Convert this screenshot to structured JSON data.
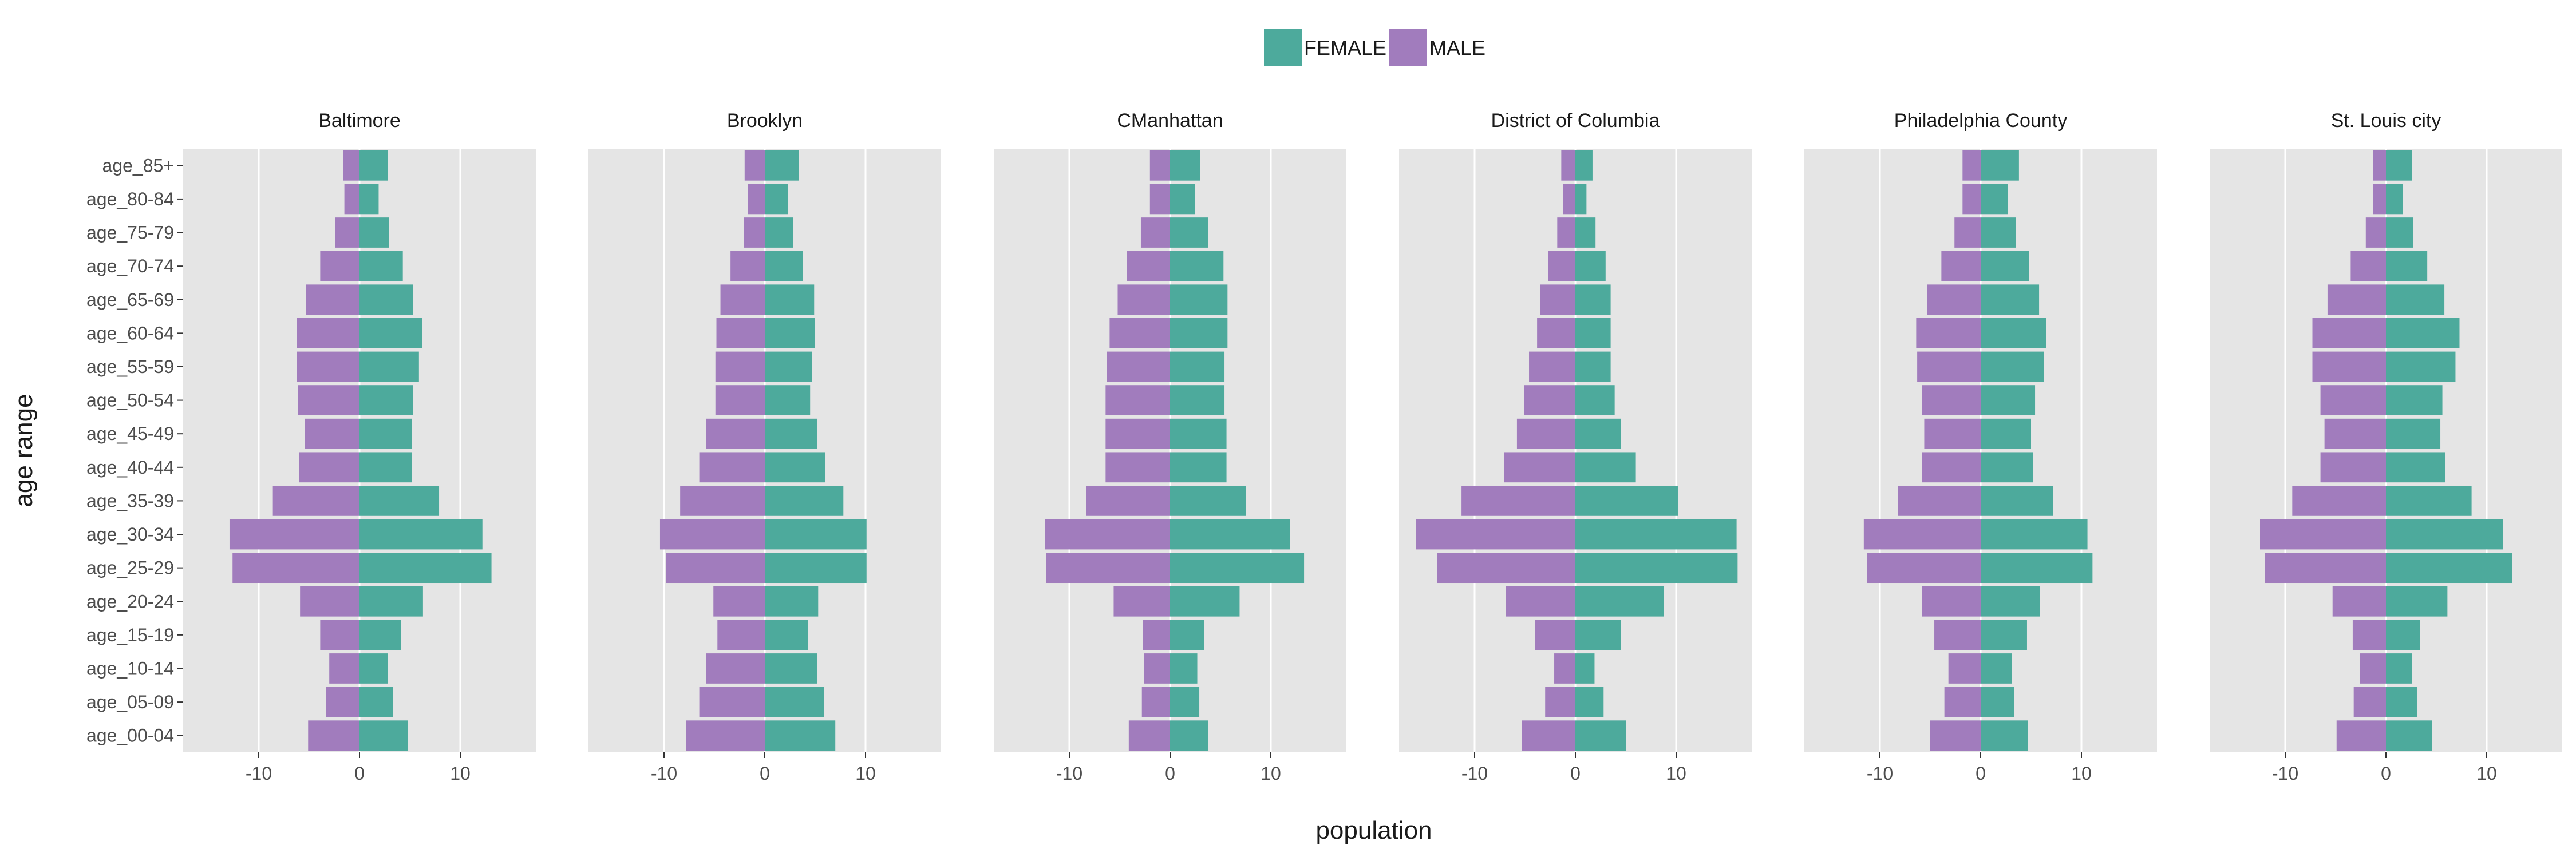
{
  "chart_data": {
    "type": "bar",
    "orientation": "horizontal",
    "layout": "faceted population pyramid",
    "xlabel": "population",
    "ylabel": "age range",
    "xlim": [
      -17.5,
      17.5
    ],
    "x_ticks": [
      -10,
      0,
      10
    ],
    "x_tick_labels": [
      "-10",
      "0",
      "10"
    ],
    "grid": true,
    "legend": {
      "position": "top",
      "entries": [
        "FEMALE",
        "MALE"
      ]
    },
    "colors": {
      "FEMALE": "#4daa9c",
      "MALE": "#a17cbd",
      "panel_bg": "#e5e5e5",
      "grid": "#ffffff"
    },
    "categories": [
      "age_00-04",
      "age_05-09",
      "age_10-14",
      "age_15-19",
      "age_20-24",
      "age_25-29",
      "age_30-34",
      "age_35-39",
      "age_40-44",
      "age_45-49",
      "age_50-54",
      "age_55-59",
      "age_60-64",
      "age_65-69",
      "age_70-74",
      "age_75-79",
      "age_80-84",
      "age_85+"
    ],
    "facets": [
      {
        "name": "Baltimore",
        "series": [
          {
            "name": "FEMALE",
            "values": [
              4.8,
              3.3,
              2.8,
              4.1,
              6.3,
              13.1,
              12.2,
              7.9,
              5.2,
              5.2,
              5.3,
              5.9,
              6.2,
              5.3,
              4.3,
              2.9,
              1.9,
              2.8
            ]
          },
          {
            "name": "MALE",
            "values": [
              -5.1,
              -3.3,
              -3.0,
              -3.9,
              -5.9,
              -12.6,
              -12.9,
              -8.6,
              -6.0,
              -5.4,
              -6.1,
              -6.2,
              -6.2,
              -5.3,
              -3.9,
              -2.4,
              -1.5,
              -1.6
            ]
          }
        ]
      },
      {
        "name": "Brooklyn",
        "series": [
          {
            "name": "FEMALE",
            "values": [
              7.0,
              5.9,
              5.2,
              4.3,
              5.3,
              10.1,
              10.1,
              7.8,
              6.0,
              5.2,
              4.5,
              4.7,
              5.0,
              4.9,
              3.8,
              2.8,
              2.3,
              3.4
            ]
          },
          {
            "name": "MALE",
            "values": [
              -7.8,
              -6.5,
              -5.8,
              -4.7,
              -5.1,
              -9.8,
              -10.4,
              -8.4,
              -6.5,
              -5.8,
              -4.9,
              -4.9,
              -4.8,
              -4.4,
              -3.4,
              -2.1,
              -1.7,
              -2.0
            ]
          }
        ]
      },
      {
        "name": "CManhattan",
        "series": [
          {
            "name": "FEMALE",
            "values": [
              3.8,
              2.9,
              2.7,
              3.4,
              6.9,
              13.3,
              11.9,
              7.5,
              5.6,
              5.6,
              5.4,
              5.4,
              5.7,
              5.7,
              5.3,
              3.8,
              2.5,
              3.0
            ]
          },
          {
            "name": "MALE",
            "values": [
              -4.1,
              -2.8,
              -2.6,
              -2.7,
              -5.6,
              -12.3,
              -12.4,
              -8.3,
              -6.4,
              -6.4,
              -6.4,
              -6.3,
              -6.0,
              -5.2,
              -4.3,
              -2.9,
              -2.0,
              -2.0
            ]
          }
        ]
      },
      {
        "name": "District of Columbia",
        "series": [
          {
            "name": "FEMALE",
            "values": [
              5.0,
              2.8,
              1.9,
              4.5,
              8.8,
              16.1,
              16.0,
              10.2,
              6.0,
              4.5,
              3.9,
              3.5,
              3.5,
              3.5,
              3.0,
              2.0,
              1.1,
              1.7
            ]
          },
          {
            "name": "MALE",
            "values": [
              -5.3,
              -3.0,
              -2.1,
              -4.0,
              -6.9,
              -13.7,
              -15.8,
              -11.3,
              -7.1,
              -5.8,
              -5.1,
              -4.6,
              -3.8,
              -3.5,
              -2.7,
              -1.8,
              -1.2,
              -1.4
            ]
          }
        ]
      },
      {
        "name": "Philadelphia County",
        "series": [
          {
            "name": "FEMALE",
            "values": [
              4.7,
              3.3,
              3.1,
              4.6,
              5.9,
              11.1,
              10.6,
              7.2,
              5.2,
              5.0,
              5.4,
              6.3,
              6.5,
              5.8,
              4.8,
              3.5,
              2.7,
              3.8
            ]
          },
          {
            "name": "MALE",
            "values": [
              -5.0,
              -3.6,
              -3.2,
              -4.6,
              -5.8,
              -11.3,
              -11.6,
              -8.2,
              -5.8,
              -5.6,
              -5.8,
              -6.3,
              -6.4,
              -5.3,
              -3.9,
              -2.6,
              -1.8,
              -1.8
            ]
          }
        ]
      },
      {
        "name": "St. Louis city",
        "series": [
          {
            "name": "FEMALE",
            "values": [
              4.6,
              3.1,
              2.6,
              3.4,
              6.1,
              12.5,
              11.6,
              8.5,
              5.9,
              5.4,
              5.6,
              6.9,
              7.3,
              5.8,
              4.1,
              2.7,
              1.7,
              2.6
            ]
          },
          {
            "name": "MALE",
            "values": [
              -4.9,
              -3.2,
              -2.6,
              -3.3,
              -5.3,
              -12.0,
              -12.5,
              -9.3,
              -6.5,
              -6.1,
              -6.5,
              -7.3,
              -7.3,
              -5.8,
              -3.5,
              -2.0,
              -1.3,
              -1.3
            ]
          }
        ]
      }
    ]
  }
}
